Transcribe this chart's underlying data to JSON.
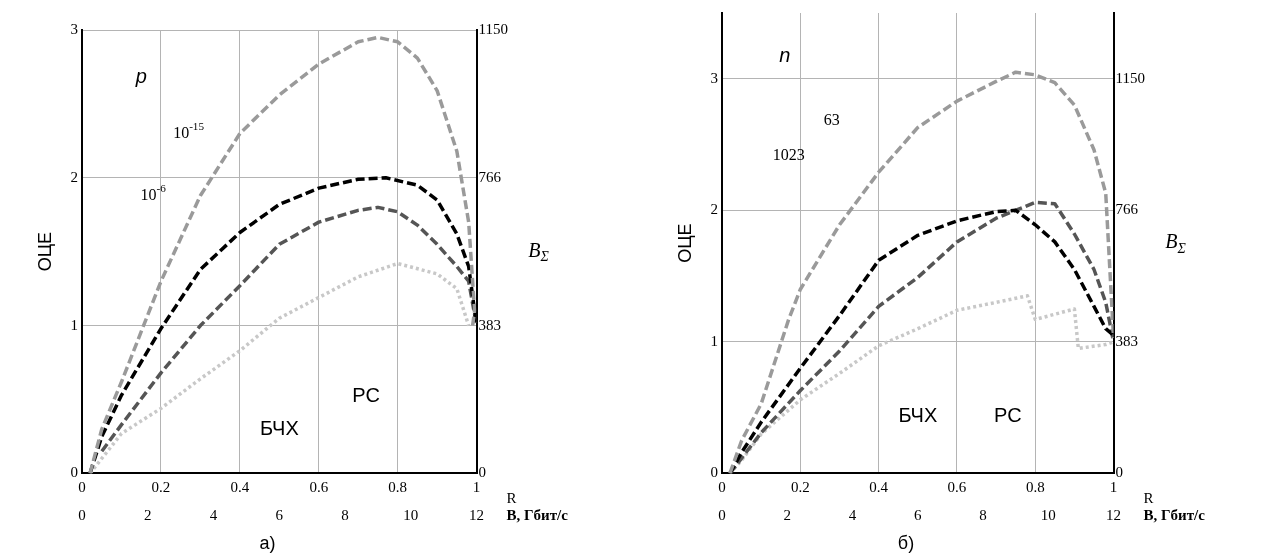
{
  "chart_data": [
    {
      "type": "line",
      "title": "а)",
      "xlabel": "R",
      "x2label": "B, Гбит/с",
      "ylabel": "ОЦЕ",
      "y2label": "B$_{Σ}$",
      "xlim": [
        0,
        1
      ],
      "xticks": [
        0,
        0.2,
        0.4,
        0.6,
        0.8,
        1
      ],
      "x2lim": [
        0,
        12
      ],
      "x2ticks": [
        0,
        2,
        4,
        6,
        8,
        10,
        12
      ],
      "ylim": [
        0,
        3
      ],
      "yticks": [
        0,
        1,
        2,
        3
      ],
      "y2lim": [
        0,
        1150
      ],
      "y2ticks": [
        0,
        383,
        766,
        1150
      ],
      "grid": true,
      "legend": false,
      "marker": "none",
      "series": [
        {
          "color": "#9a9a9a",
          "line_style": "dashed",
          "x": [
            0.02,
            0.05,
            0.1,
            0.2,
            0.3,
            0.4,
            0.5,
            0.6,
            0.7,
            0.75,
            0.8,
            0.85,
            0.9,
            0.95,
            0.98,
            0.995,
            0.99
          ],
          "values": [
            0,
            0.3,
            0.62,
            1.3,
            1.88,
            2.3,
            2.56,
            2.77,
            2.92,
            2.95,
            2.92,
            2.81,
            2.59,
            2.18,
            1.7,
            1.1,
            1.0
          ]
        },
        {
          "color": "#000000",
          "line_style": "dashed",
          "x": [
            0.02,
            0.05,
            0.1,
            0.2,
            0.3,
            0.4,
            0.5,
            0.6,
            0.7,
            0.77,
            0.85,
            0.9,
            0.95,
            0.98,
            1.0
          ],
          "values": [
            0,
            0.25,
            0.53,
            0.98,
            1.38,
            1.63,
            1.82,
            1.93,
            1.99,
            2.0,
            1.95,
            1.85,
            1.62,
            1.4,
            1.0
          ]
        },
        {
          "color": "#555555",
          "line_style": "dashed",
          "x": [
            0.05,
            0.1,
            0.2,
            0.3,
            0.4,
            0.5,
            0.6,
            0.7,
            0.75,
            0.8,
            0.85,
            0.9,
            0.95,
            0.98,
            1.0
          ],
          "values": [
            0.15,
            0.33,
            0.68,
            1.0,
            1.27,
            1.55,
            1.7,
            1.78,
            1.8,
            1.77,
            1.68,
            1.55,
            1.4,
            1.3,
            1.0
          ]
        },
        {
          "color": "#c8c8c8",
          "line_style": "dotted",
          "x": [
            0.02,
            0.1,
            0.2,
            0.3,
            0.4,
            0.5,
            0.6,
            0.7,
            0.8,
            0.9,
            0.95,
            0.98
          ],
          "values": [
            0,
            0.27,
            0.44,
            0.64,
            0.83,
            1.05,
            1.19,
            1.33,
            1.42,
            1.35,
            1.25,
            1.0
          ]
        }
      ],
      "annotations": [
        "p",
        "10$^{-15}$",
        "10$^{-6}$",
        "БЧХ",
        "РС"
      ]
    },
    {
      "type": "line",
      "title": "б)",
      "xlabel": "R",
      "x2label": "B, Гбит/с",
      "ylabel": "ОЦЕ",
      "y2label": "B$_{Σ}$",
      "xlim": [
        0,
        1
      ],
      "xticks": [
        0,
        0.2,
        0.4,
        0.6,
        0.8,
        1
      ],
      "x2lim": [
        0,
        12
      ],
      "x2ticks": [
        0,
        2,
        4,
        6,
        8,
        10,
        12
      ],
      "ylim": [
        0,
        3.5
      ],
      "yticks": [
        0,
        1,
        2,
        3
      ],
      "y2lim": [
        0,
        1341.7
      ],
      "y2ticks": [
        0,
        383,
        766,
        1150
      ],
      "grid": true,
      "legend": false,
      "marker": "none",
      "series": [
        {
          "color": "#9a9a9a",
          "line_style": "dashed",
          "x": [
            0.02,
            0.05,
            0.1,
            0.17,
            0.2,
            0.3,
            0.4,
            0.5,
            0.6,
            0.7,
            0.75,
            0.8,
            0.85,
            0.9,
            0.95,
            0.98,
            1.0
          ],
          "values": [
            0,
            0.25,
            0.53,
            1.17,
            1.4,
            1.89,
            2.29,
            2.63,
            2.83,
            2.98,
            3.05,
            3.03,
            2.97,
            2.8,
            2.46,
            2.13,
            1.03
          ]
        },
        {
          "color": "#000000",
          "line_style": "dashed",
          "x": [
            0.02,
            0.05,
            0.1,
            0.2,
            0.3,
            0.4,
            0.5,
            0.6,
            0.7,
            0.75,
            0.8,
            0.85,
            0.9,
            0.95,
            0.98,
            1.0
          ],
          "values": [
            0,
            0.16,
            0.39,
            0.8,
            1.2,
            1.62,
            1.81,
            1.92,
            1.99,
            2.0,
            1.89,
            1.76,
            1.55,
            1.27,
            1.1,
            1.05
          ]
        },
        {
          "color": "#555555",
          "line_style": "dashed",
          "x": [
            0.02,
            0.1,
            0.2,
            0.3,
            0.4,
            0.5,
            0.6,
            0.7,
            0.8,
            0.85,
            0.9,
            0.95,
            0.98,
            1.0
          ],
          "values": [
            0,
            0.31,
            0.63,
            0.93,
            1.27,
            1.49,
            1.76,
            1.94,
            2.06,
            2.05,
            1.82,
            1.55,
            1.3,
            1.0
          ]
        },
        {
          "color": "#c8c8c8",
          "line_style": "dotted",
          "x": [
            0.02,
            0.05,
            0.1,
            0.2,
            0.3,
            0.4,
            0.5,
            0.6,
            0.7,
            0.78,
            0.8,
            0.9,
            0.91,
            0.98,
            1.0
          ],
          "values": [
            0,
            0.1,
            0.3,
            0.56,
            0.76,
            0.97,
            1.1,
            1.24,
            1.3,
            1.35,
            1.17,
            1.25,
            0.95,
            0.98,
            1.0
          ]
        }
      ],
      "annotations": [
        "n",
        "63",
        "1023",
        "БЧХ",
        "РС"
      ]
    }
  ]
}
